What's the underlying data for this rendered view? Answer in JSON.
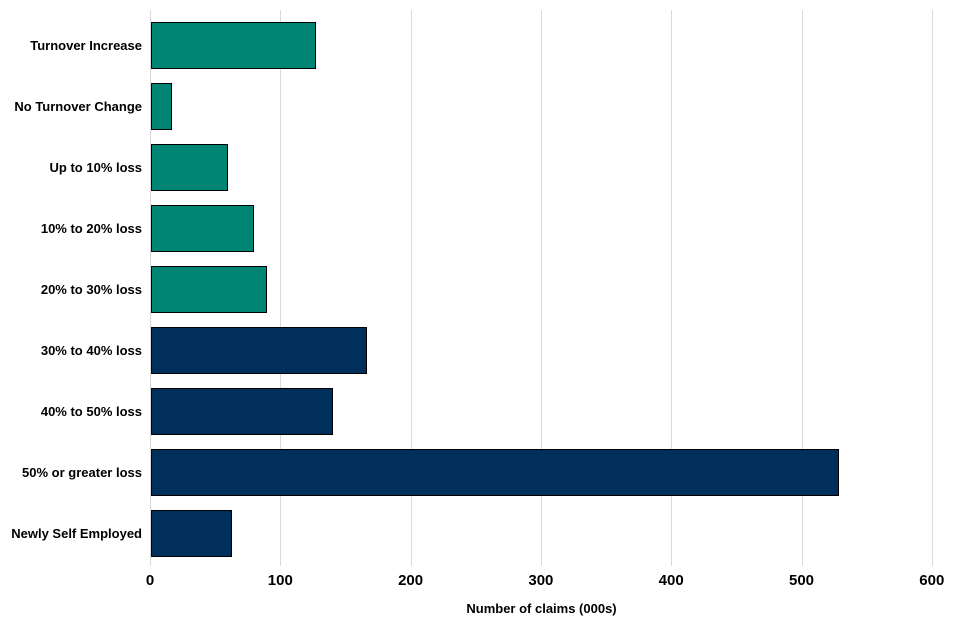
{
  "chart_data": {
    "type": "bar",
    "orientation": "horizontal",
    "title": "",
    "categories": [
      "Turnover Increase",
      "No Turnover Change",
      "Up to 10% loss",
      "10% to 20% loss",
      "20% to 30% loss",
      "30% to 40% loss",
      "40% to 50% loss",
      "50% or greater loss",
      "Newly Self Employed"
    ],
    "values": [
      127,
      16,
      59,
      79,
      89,
      166,
      140,
      528,
      62
    ],
    "bar_color_keys": [
      "teal",
      "teal",
      "teal",
      "teal",
      "teal",
      "navy",
      "navy",
      "navy",
      "navy"
    ],
    "colors": {
      "teal": "#008575",
      "navy": "#002f5c",
      "bar_border": "#000000",
      "gridline": "#d9d9d9",
      "text": "#000000"
    },
    "xlabel": "Number of claims (000s)",
    "x_ticks": [
      0,
      100,
      200,
      300,
      400,
      500,
      600
    ],
    "xlim": [
      0,
      600
    ],
    "grid": "vertical-only",
    "legend": "none"
  }
}
